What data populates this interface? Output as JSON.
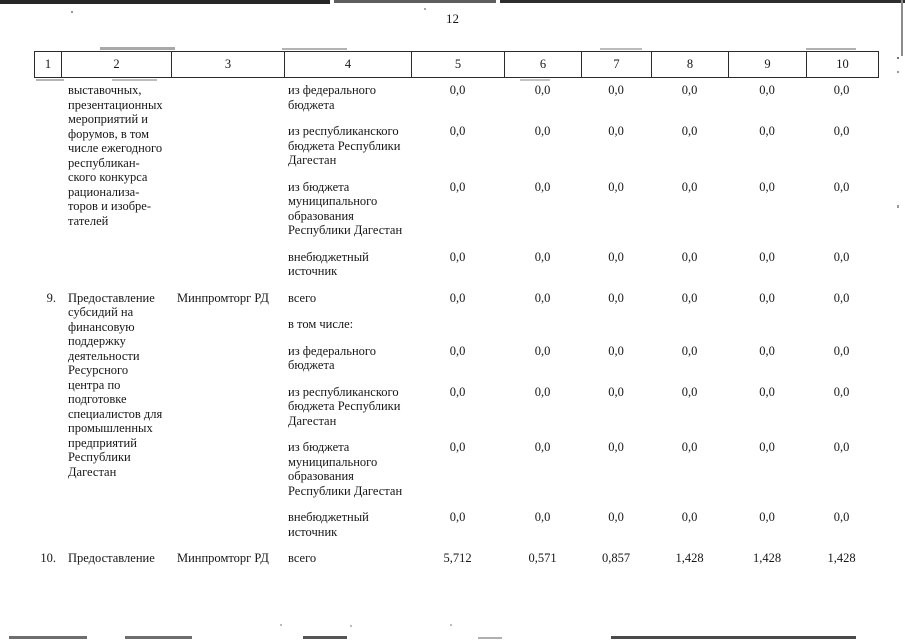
{
  "page": {
    "number": "12"
  },
  "table": {
    "header_cols": [
      "1",
      "2",
      "3",
      "4",
      "5",
      "6",
      "7",
      "8",
      "9",
      "10"
    ],
    "rows": [
      {
        "num": "",
        "name_lines": [
          "выставочных,",
          "презентационных",
          "мероприятий и",
          "форумов, в том",
          "числе ежегодного",
          "республикан-",
          "ского конкурса",
          "рационализа-",
          "торов и изобре-",
          "тателей"
        ],
        "executor": "",
        "sources": [
          {
            "label_lines": [
              "из федерального",
              "бюджета"
            ],
            "values": [
              "0,0",
              "0,0",
              "0,0",
              "0,0",
              "0,0",
              "0,0"
            ]
          },
          {
            "label_lines": [
              "из республиканского",
              "бюджета Республики",
              "Дагестан"
            ],
            "values": [
              "0,0",
              "0,0",
              "0,0",
              "0,0",
              "0,0",
              "0,0"
            ]
          },
          {
            "label_lines": [
              "из бюджета",
              "муниципального",
              "образования",
              "Республики Дагестан"
            ],
            "values": [
              "0,0",
              "0,0",
              "0,0",
              "0,0",
              "0,0",
              "0,0"
            ]
          },
          {
            "label_lines": [
              "внебюджетный",
              "источник"
            ],
            "values": [
              "0,0",
              "0,0",
              "0,0",
              "0,0",
              "0,0",
              "0,0"
            ]
          }
        ]
      },
      {
        "num": "9.",
        "name_lines": [
          "Предоставление",
          "субсидий на",
          "финансовую",
          "поддержку",
          "деятельности",
          "Ресурсного",
          "центра по",
          "подготовке",
          "специалистов для",
          "промышленных",
          "предприятий",
          "Республики",
          "Дагестан"
        ],
        "executor": "Минпромторг РД",
        "sources": [
          {
            "label_lines": [
              "всего"
            ],
            "values": [
              "0,0",
              "0,0",
              "0,0",
              "0,0",
              "0,0",
              "0,0"
            ]
          },
          {
            "label_lines": [
              "в том числе:"
            ],
            "values": []
          },
          {
            "label_lines": [
              "из федерального",
              "бюджета"
            ],
            "values": [
              "0,0",
              "0,0",
              "0,0",
              "0,0",
              "0,0",
              "0,0"
            ]
          },
          {
            "label_lines": [
              "из республиканского",
              "бюджета Республики",
              "Дагестан"
            ],
            "values": [
              "0,0",
              "0,0",
              "0,0",
              "0,0",
              "0,0",
              "0,0"
            ]
          },
          {
            "label_lines": [
              "из бюджета",
              "муниципального",
              "образования",
              "Республики Дагестан"
            ],
            "values": [
              "0,0",
              "0,0",
              "0,0",
              "0,0",
              "0,0",
              "0,0"
            ]
          },
          {
            "label_lines": [
              "внебюджетный",
              "источник"
            ],
            "values": [
              "0,0",
              "0,0",
              "0,0",
              "0,0",
              "0,0",
              "0,0"
            ]
          }
        ]
      },
      {
        "num": "10.",
        "name_lines": [
          "Предоставление"
        ],
        "executor": "Минпромторг РД",
        "sources": [
          {
            "label_lines": [
              "всего"
            ],
            "values": [
              "5,712",
              "0,571",
              "0,857",
              "1,428",
              "1,428",
              "1,428"
            ]
          }
        ]
      }
    ]
  }
}
